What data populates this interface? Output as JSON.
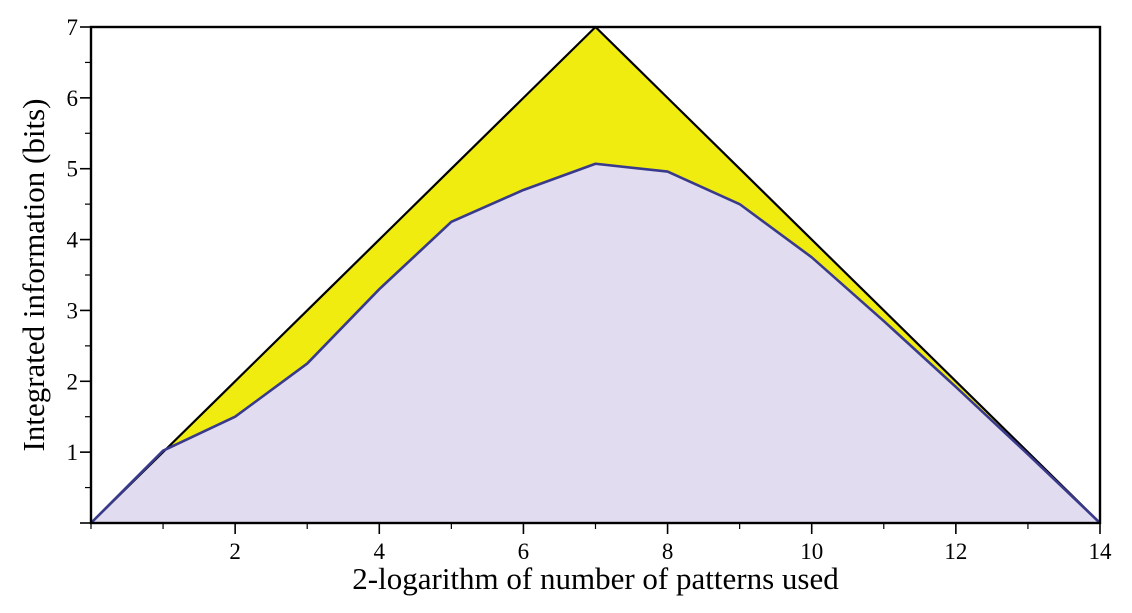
{
  "chart_data": {
    "type": "area",
    "title": "",
    "xlabel": "2-logarithm of number of patterns used",
    "ylabel": "Integrated information (bits)",
    "xlim": [
      0,
      14
    ],
    "ylim": [
      0,
      7
    ],
    "x_major_ticks": [
      2,
      4,
      6,
      8,
      10,
      12,
      14
    ],
    "x_minor_ticks": [
      0,
      1,
      3,
      5,
      7,
      9,
      11,
      13
    ],
    "y_major_ticks": [
      1,
      2,
      3,
      4,
      5,
      6,
      7
    ],
    "y_minor_ticks": [
      0.5,
      1.5,
      2.5,
      3.5,
      4.5,
      5.5,
      6.5
    ],
    "grid": false,
    "legend": "none",
    "series": [
      {
        "x": [
          0,
          1,
          2,
          3,
          4,
          5,
          6,
          7,
          8,
          9,
          10,
          11,
          12,
          13,
          14
        ],
        "values": [
          0,
          1,
          2,
          3,
          4,
          5,
          6,
          7,
          6,
          5,
          4,
          3,
          2,
          1,
          0
        ],
        "fill": "#f0ec10",
        "stroke": "#000000"
      },
      {
        "x": [
          0,
          1,
          2,
          3,
          4,
          5,
          6,
          7,
          8,
          9,
          10,
          11,
          12,
          13,
          14
        ],
        "values": [
          0,
          1.02,
          1.5,
          2.25,
          3.3,
          4.25,
          4.7,
          5.07,
          4.96,
          4.5,
          3.75,
          2.85,
          1.92,
          0.97,
          0
        ],
        "fill": "#e1dcf0",
        "stroke": "#3a3a8c"
      }
    ]
  }
}
